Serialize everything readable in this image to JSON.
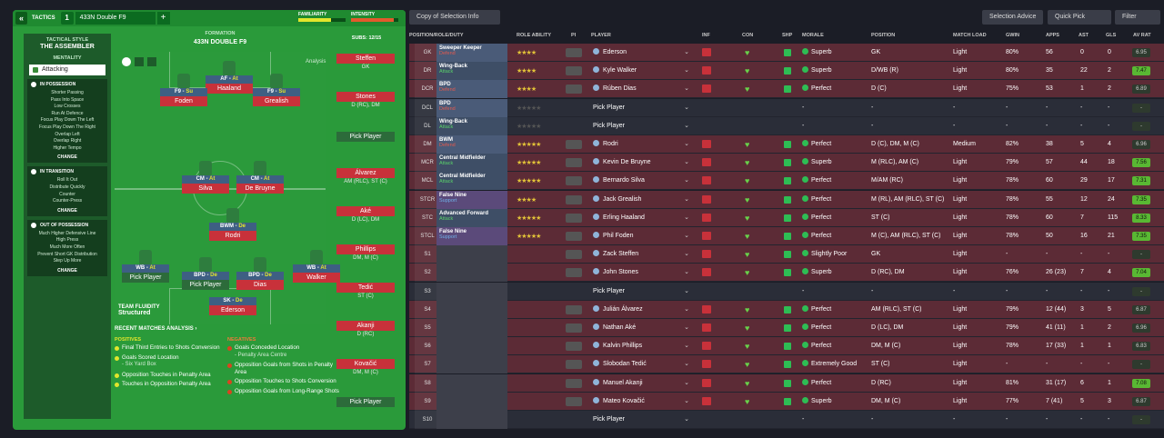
{
  "topbar": {
    "back": "«",
    "tactics": "TACTICS",
    "slot": "1",
    "formation": "433N Double F9",
    "add": "+",
    "familiarity": "FAMILIARITY",
    "intensity": "INTENSITY"
  },
  "sidebar": {
    "style_label": "TACTICAL STYLE",
    "style": "THE ASSEMBLER",
    "mentality_label": "MENTALITY",
    "mentality": "Attacking",
    "in_possession": {
      "title": "IN POSSESSION",
      "items": [
        "Shorter Passing",
        "Pass Into Space",
        "Low Crosses",
        "Run At Defence",
        "Focus Play Down The Left",
        "Focus Play Down The Right",
        "Overlap Left",
        "Overlap Right",
        "Higher Tempo"
      ],
      "change": "CHANGE"
    },
    "in_transition": {
      "title": "IN TRANSITION",
      "items": [
        "Roll It Out",
        "Distribute Quickly",
        "Counter",
        "Counter-Press"
      ],
      "change": "CHANGE"
    },
    "out_of_possession": {
      "title": "OUT OF POSSESSION",
      "items": [
        "Much Higher Defensive Line",
        "High Press",
        "Much More Often",
        "Prevent Short GK Distribution",
        "Step Up More"
      ],
      "change": "CHANGE"
    }
  },
  "formation": {
    "label": "FORMATION",
    "name": "433N DOUBLE F9",
    "analysis": "Analysis",
    "subs_label": "SUBS:",
    "subs_count": "12/15",
    "fluidity_label": "TEAM FLUIDITY",
    "fluidity": "Structured"
  },
  "pitch": [
    {
      "role": "AF",
      "duty": "At",
      "name": "Haaland"
    },
    {
      "role": "F9",
      "duty": "Su",
      "name": "Foden"
    },
    {
      "role": "F9",
      "duty": "Su",
      "name": "Grealish"
    },
    {
      "role": "CM",
      "duty": "At",
      "name": "Silva"
    },
    {
      "role": "CM",
      "duty": "At",
      "name": "De Bruyne"
    },
    {
      "role": "BWM",
      "duty": "De",
      "name": "Rodri"
    },
    {
      "role": "WB",
      "duty": "At",
      "name": "Pick Player"
    },
    {
      "role": "BPD",
      "duty": "De",
      "name": "Pick Player"
    },
    {
      "role": "BPD",
      "duty": "De",
      "name": "Dias"
    },
    {
      "role": "WB",
      "duty": "At",
      "name": "Walker"
    },
    {
      "role": "SK",
      "duty": "De",
      "name": "Ederson"
    }
  ],
  "subs": [
    {
      "name": "Steffen",
      "pos": "GK"
    },
    {
      "name": "Stones",
      "pos": "D (RC), DM"
    },
    {
      "name": "Pick Player",
      "pos": ""
    },
    {
      "name": "Álvarez",
      "pos": "AM (RLC), ST (C)"
    },
    {
      "name": "Aké",
      "pos": "D (LC), DM"
    },
    {
      "name": "Phillips",
      "pos": "DM, M (C)"
    },
    {
      "name": "Tedić",
      "pos": "ST (C)"
    },
    {
      "name": "Akanji",
      "pos": "D (RC)"
    },
    {
      "name": "Kovačić",
      "pos": "DM, M (C)"
    },
    {
      "name": "Pick Player",
      "pos": ""
    }
  ],
  "analysis": {
    "title": "RECENT MATCHES ANALYSIS ›",
    "positives_label": "POSITIVES",
    "negatives_label": "NEGATIVES",
    "positives": [
      "Final Third Entries to Shots Conversion",
      "Goals Scored Location",
      "Opposition Touches in Penalty Area",
      "Touches in Opposition Penalty Area"
    ],
    "pos_sub": "- Six Yard Box",
    "negatives": [
      "Goals Conceded Location",
      "Opposition Goals from Shots in Penalty Area",
      "Opposition Touches to Shots Conversion",
      "Opposition Goals from Long-Range Shots"
    ],
    "neg_sub": "- Penalty Area Centre"
  },
  "header": {
    "copy": "Copy of Selection Info",
    "advice": "Selection Advice",
    "quick": "Quick Pick",
    "filter": "Filter"
  },
  "columns": [
    "POSITION/ROLE/DUTY",
    "ROLE ABILITY",
    "PI",
    "PLAYER",
    "INF",
    "CON",
    "SHP",
    "MORALE",
    "POSITION",
    "MATCH LOAD",
    "GWIN",
    "APPS",
    "AST",
    "GLS",
    "AV RAT"
  ],
  "rows": [
    {
      "pos": "GK",
      "role": "Sweeper Keeper",
      "duty": "Defend",
      "stars": "★★★★",
      "player": "Ederson",
      "morale": "Superb",
      "position": "GK",
      "load": "Light",
      "gwin": "80%",
      "apps": "56",
      "ast": "0",
      "gls": "0",
      "rat": "6.95"
    },
    {
      "pos": "DR",
      "role": "Wing-Back",
      "duty": "Attack",
      "stars": "★★★★",
      "player": "Kyle Walker",
      "morale": "Superb",
      "position": "D/WB (R)",
      "load": "Light",
      "gwin": "80%",
      "apps": "35",
      "ast": "22",
      "gls": "2",
      "rat": "7.47"
    },
    {
      "pos": "DCR",
      "role": "BPD",
      "duty": "Defend",
      "stars": "★★★★",
      "player": "Rúben Dias",
      "morale": "Perfect",
      "position": "D (C)",
      "load": "Light",
      "gwin": "75%",
      "apps": "53",
      "ast": "1",
      "gls": "2",
      "rat": "6.89"
    },
    {
      "pos": "DCL",
      "role": "BPD",
      "duty": "Defend",
      "stars": "★★★★★",
      "player": "Pick Player",
      "morale": "-",
      "position": "-",
      "load": "-",
      "gwin": "-",
      "apps": "-",
      "ast": "-",
      "gls": "-",
      "rat": "-"
    },
    {
      "pos": "DL",
      "role": "Wing-Back",
      "duty": "Attack",
      "stars": "★★★★★",
      "player": "Pick Player",
      "morale": "-",
      "position": "-",
      "load": "-",
      "gwin": "-",
      "apps": "-",
      "ast": "-",
      "gls": "-",
      "rat": "-"
    },
    {
      "pos": "DM",
      "role": "BWM",
      "duty": "Defend",
      "stars": "★★★★★",
      "player": "Rodri",
      "morale": "Perfect",
      "position": "D (C), DM, M (C)",
      "load": "Medium",
      "gwin": "82%",
      "apps": "38",
      "ast": "5",
      "gls": "4",
      "rat": "6.96"
    },
    {
      "pos": "MCR",
      "role": "Central Midfielder",
      "duty": "Attack",
      "stars": "★★★★★",
      "player": "Kevin De Bruyne",
      "morale": "Superb",
      "position": "M (RLC), AM (C)",
      "load": "Light",
      "gwin": "79%",
      "apps": "57",
      "ast": "44",
      "gls": "18",
      "rat": "7.56"
    },
    {
      "pos": "MCL",
      "role": "Central Midfielder",
      "duty": "Attack",
      "stars": "★★★★★",
      "player": "Bernardo Silva",
      "morale": "Perfect",
      "position": "M/AM (RC)",
      "load": "Light",
      "gwin": "78%",
      "apps": "60",
      "ast": "29",
      "gls": "17",
      "rat": "7.31"
    },
    {
      "pos": "STCR",
      "role": "False Nine",
      "duty": "Support",
      "stars": "★★★★",
      "player": "Jack Grealish",
      "morale": "Perfect",
      "position": "M (RL), AM (RLC), ST (C)",
      "load": "Light",
      "gwin": "78%",
      "apps": "55",
      "ast": "12",
      "gls": "24",
      "rat": "7.35"
    },
    {
      "pos": "STC",
      "role": "Advanced Forward",
      "duty": "Attack",
      "stars": "★★★★★",
      "player": "Erling Haaland",
      "morale": "Perfect",
      "position": "ST (C)",
      "load": "Light",
      "gwin": "78%",
      "apps": "60",
      "ast": "7",
      "gls": "115",
      "rat": "8.33"
    },
    {
      "pos": "STCL",
      "role": "False Nine",
      "duty": "Support",
      "stars": "★★★★★",
      "player": "Phil Foden",
      "morale": "Perfect",
      "position": "M (C), AM (RLC), ST (C)",
      "load": "Light",
      "gwin": "78%",
      "apps": "50",
      "ast": "16",
      "gls": "21",
      "rat": "7.35"
    },
    {
      "pos": "S1",
      "role": "",
      "duty": "",
      "stars": "",
      "player": "Zack Steffen",
      "morale": "Slightly Poor",
      "position": "GK",
      "load": "Light",
      "gwin": "-",
      "apps": "-",
      "ast": "-",
      "gls": "-",
      "rat": "-"
    },
    {
      "pos": "S2",
      "role": "",
      "duty": "",
      "stars": "",
      "player": "John Stones",
      "morale": "Superb",
      "position": "D (RC), DM",
      "load": "Light",
      "gwin": "76%",
      "apps": "26 (23)",
      "ast": "7",
      "gls": "4",
      "rat": "7.04"
    },
    {
      "pos": "S3",
      "role": "",
      "duty": "",
      "stars": "",
      "player": "Pick Player",
      "morale": "-",
      "position": "-",
      "load": "-",
      "gwin": "-",
      "apps": "-",
      "ast": "-",
      "gls": "-",
      "rat": "-"
    },
    {
      "pos": "S4",
      "role": "",
      "duty": "",
      "stars": "",
      "player": "Julián Álvarez",
      "morale": "Perfect",
      "position": "AM (RLC), ST (C)",
      "load": "Light",
      "gwin": "79%",
      "apps": "12 (44)",
      "ast": "3",
      "gls": "5",
      "rat": "6.87"
    },
    {
      "pos": "S5",
      "role": "",
      "duty": "",
      "stars": "",
      "player": "Nathan Aké",
      "morale": "Perfect",
      "position": "D (LC), DM",
      "load": "Light",
      "gwin": "79%",
      "apps": "41 (11)",
      "ast": "1",
      "gls": "2",
      "rat": "6.96"
    },
    {
      "pos": "S6",
      "role": "",
      "duty": "",
      "stars": "",
      "player": "Kalvin Phillips",
      "morale": "Perfect",
      "position": "DM, M (C)",
      "load": "Light",
      "gwin": "78%",
      "apps": "17 (33)",
      "ast": "1",
      "gls": "1",
      "rat": "6.83"
    },
    {
      "pos": "S7",
      "role": "",
      "duty": "",
      "stars": "",
      "player": "Slobodan Tedić",
      "morale": "Extremely Good",
      "position": "ST (C)",
      "load": "Light",
      "gwin": "-",
      "apps": "-",
      "ast": "-",
      "gls": "-",
      "rat": "-"
    },
    {
      "pos": "S8",
      "role": "",
      "duty": "",
      "stars": "",
      "player": "Manuel Akanji",
      "morale": "Perfect",
      "position": "D (RC)",
      "load": "Light",
      "gwin": "81%",
      "apps": "31 (17)",
      "ast": "6",
      "gls": "1",
      "rat": "7.08"
    },
    {
      "pos": "S9",
      "role": "",
      "duty": "",
      "stars": "",
      "player": "Mateo Kovačić",
      "morale": "Superb",
      "position": "DM, M (C)",
      "load": "Light",
      "gwin": "77%",
      "apps": "7 (41)",
      "ast": "5",
      "gls": "3",
      "rat": "6.87"
    },
    {
      "pos": "S10",
      "role": "",
      "duty": "",
      "stars": "",
      "player": "Pick Player",
      "morale": "-",
      "position": "-",
      "load": "-",
      "gwin": "-",
      "apps": "-",
      "ast": "-",
      "gls": "-",
      "rat": "-"
    }
  ]
}
